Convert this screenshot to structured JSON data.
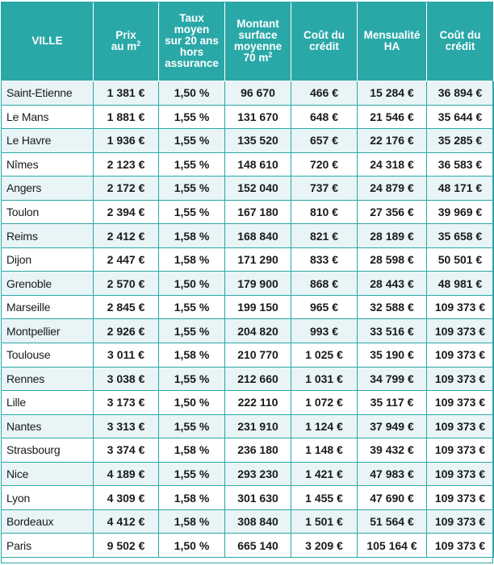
{
  "chart_data": {
    "type": "table",
    "columns": [
      {
        "label": "VILLE"
      },
      {
        "label": "Prix\nau m",
        "sup": "2"
      },
      {
        "label": "Taux\nmoyen\nsur 20 ans\nhors\nassurance"
      },
      {
        "label": "Montant\nsurface\nmoyenne\n70 m",
        "sup": "2"
      },
      {
        "label": "Coût du\ncrédit"
      },
      {
        "label": "Mensualité\nHA"
      },
      {
        "label": "Coût du\ncrédit"
      }
    ],
    "rows": [
      [
        "Saint-Etienne",
        "1 381 €",
        "1,50 %",
        "96 670",
        "466 €",
        "15 284 €",
        "36 894 €"
      ],
      [
        "Le Mans",
        "1 881 €",
        "1,55 %",
        "131 670",
        "648 €",
        "21 546 €",
        "35 644 €"
      ],
      [
        "Le Havre",
        "1 936 €",
        "1,55 %",
        "135 520",
        "657 €",
        "22 176 €",
        "35 285 €"
      ],
      [
        "Nîmes",
        "2 123 €",
        "1,55 %",
        "148 610",
        "720 €",
        "24 318 €",
        "36 583 €"
      ],
      [
        "Angers",
        "2 172 €",
        "1,55 %",
        "152 040",
        "737 €",
        "24 879 €",
        "48 171 €"
      ],
      [
        "Toulon",
        "2 394 €",
        "1,55 %",
        "167 180",
        "810 €",
        "27 356 €",
        "39 969 €"
      ],
      [
        "Reims",
        "2 412 €",
        "1,58 %",
        "168 840",
        "821 €",
        "28 189 €",
        "35 658 €"
      ],
      [
        "Dijon",
        "2 447 €",
        "1,58 %",
        "171 290",
        "833 €",
        "28 598 €",
        "50 501 €"
      ],
      [
        "Grenoble",
        "2 570 €",
        "1,50 %",
        "179 900",
        "868 €",
        "28 443 €",
        "48 981 €"
      ],
      [
        "Marseille",
        "2 845 €",
        "1,55 %",
        "199 150",
        "965 €",
        "32 588 €",
        "109 373 €"
      ],
      [
        "Montpellier",
        "2 926 €",
        "1,55 %",
        "204 820",
        "993 €",
        "33 516 €",
        "109 373 €"
      ],
      [
        "Toulouse",
        "3 011 €",
        "1,58 %",
        "210 770",
        "1 025 €",
        "35 190 €",
        "109 373 €"
      ],
      [
        "Rennes",
        "3 038 €",
        "1,55 %",
        "212 660",
        "1 031 €",
        "34 799 €",
        "109 373 €"
      ],
      [
        "Lille",
        "3 173 €",
        "1,50 %",
        "222 110",
        "1 072 €",
        "35 117 €",
        "109 373 €"
      ],
      [
        "Nantes",
        "3 313 €",
        "1,55 %",
        "231 910",
        "1 124 €",
        "37 949 €",
        "109 373 €"
      ],
      [
        "Strasbourg",
        "3 374 €",
        "1,58 %",
        "236 180",
        "1 148 €",
        "39 432 €",
        "109 373 €"
      ],
      [
        "Nice",
        "4 189 €",
        "1,55 %",
        "293 230",
        "1 421 €",
        "47 983 €",
        "109 373 €"
      ],
      [
        "Lyon",
        "4 309 €",
        "1,58 %",
        "301 630",
        "1 455 €",
        "47 690 €",
        "109 373 €"
      ],
      [
        "Bordeaux",
        "4 412 €",
        "1,58 %",
        "308 840",
        "1 501 €",
        "51 564 €",
        "109 373 €"
      ],
      [
        "Paris",
        "9 502 €",
        "1,50 %",
        "665 140",
        "3 209 €",
        "105 164 €",
        "109 373 €"
      ]
    ]
  },
  "colors": {
    "header_bg": "#2aa8a8",
    "header_text": "#ffffff",
    "row_alt": "#e8f4f6",
    "grid": "#2aa8a8"
  }
}
